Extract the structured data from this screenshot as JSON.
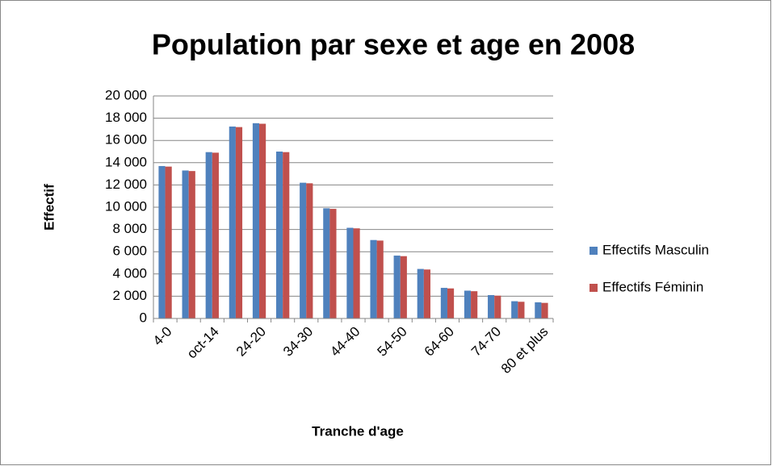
{
  "chart_data": {
    "type": "bar",
    "title": "Population par sexe et age en 2008",
    "x_label": "Tranche d'age",
    "y_label": "Effectif",
    "categories": [
      "4-0",
      null,
      "oct-14",
      null,
      "24-20",
      null,
      "34-30",
      null,
      "44-40",
      null,
      "54-50",
      null,
      "64-60",
      null,
      "74-70",
      null,
      "80 et plus"
    ],
    "series": [
      {
        "name": "Effectifs Masculin",
        "color": "#4f81bd",
        "values": [
          13700,
          13300,
          14950,
          17250,
          17550,
          15000,
          12200,
          9900,
          8150,
          7050,
          5650,
          4450,
          2750,
          2500,
          2100,
          1550,
          1450
        ]
      },
      {
        "name": "Effectifs Féminin",
        "color": "#c0504d",
        "values": [
          13650,
          13250,
          14900,
          17200,
          17500,
          14950,
          12150,
          9850,
          8100,
          7000,
          5600,
          4400,
          2700,
          2450,
          2050,
          1500,
          1400
        ]
      }
    ],
    "ylim": [
      0,
      20000
    ],
    "yticks": [
      0,
      {
        "value": 2000,
        "label": "2 000"
      },
      {
        "value": 4000,
        "label": "4 000"
      },
      {
        "value": 6000,
        "label": "6 000"
      },
      {
        "value": 8000,
        "label": "8 000"
      },
      {
        "value": 10000,
        "label": "10 000"
      },
      {
        "value": 12000,
        "label": "12 000"
      },
      {
        "value": 14000,
        "label": "14 000"
      },
      {
        "value": 16000,
        "label": "16 000"
      },
      {
        "value": 18000,
        "label": "18 000"
      },
      {
        "value": 20000,
        "label": "20 000"
      }
    ],
    "grid": true,
    "legend": "right"
  }
}
